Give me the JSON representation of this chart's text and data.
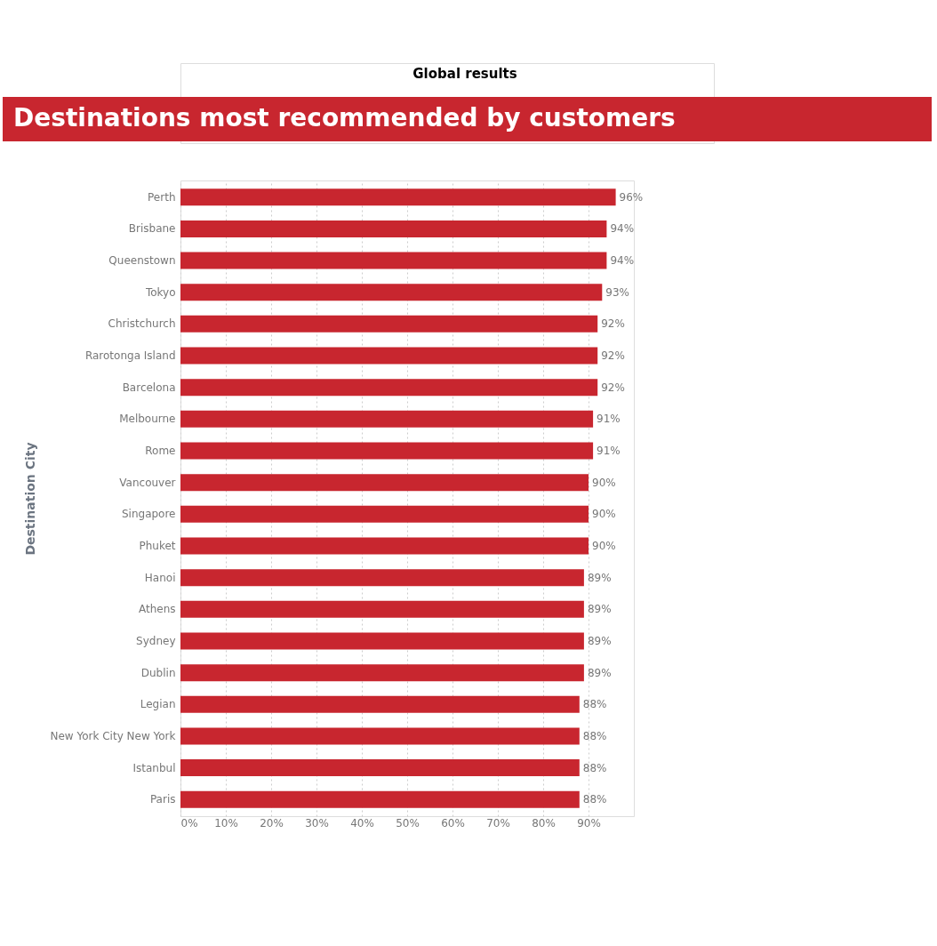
{
  "chart_data": {
    "type": "bar",
    "orientation": "horizontal",
    "subtitle": "Global results",
    "title": "Destinations most recommended by customers",
    "ylabel": "Destination City",
    "categories": [
      "Perth",
      "Brisbane",
      "Queenstown",
      "Tokyo",
      "Christchurch",
      "Rarotonga Island",
      "Barcelona",
      "Melbourne",
      "Rome",
      "Vancouver",
      "Singapore",
      "Phuket",
      "Hanoi",
      "Athens",
      "Sydney",
      "Dublin",
      "Legian",
      "New York City New York",
      "Istanbul",
      "Paris"
    ],
    "values": [
      96,
      94,
      94,
      93,
      92,
      92,
      92,
      91,
      91,
      90,
      90,
      90,
      89,
      89,
      89,
      89,
      88,
      88,
      88,
      88
    ],
    "value_labels": [
      "96%",
      "94%",
      "94%",
      "93%",
      "92%",
      "92%",
      "92%",
      "91%",
      "91%",
      "90%",
      "90%",
      "90%",
      "89%",
      "89%",
      "89%",
      "89%",
      "88%",
      "88%",
      "88%",
      "88%"
    ],
    "color": "#c8262f",
    "xlim": [
      0,
      100
    ],
    "xticks": [
      {
        "value": 0,
        "label": "0%"
      },
      {
        "value": 10,
        "label": "10%"
      },
      {
        "value": 20,
        "label": "20%"
      },
      {
        "value": 30,
        "label": "30%"
      },
      {
        "value": 40,
        "label": "40%"
      },
      {
        "value": 50,
        "label": "50%"
      },
      {
        "value": 60,
        "label": "60%"
      },
      {
        "value": 70,
        "label": "70%"
      },
      {
        "value": 80,
        "label": "80%"
      },
      {
        "value": 90,
        "label": "90%"
      }
    ],
    "grid": "x"
  }
}
